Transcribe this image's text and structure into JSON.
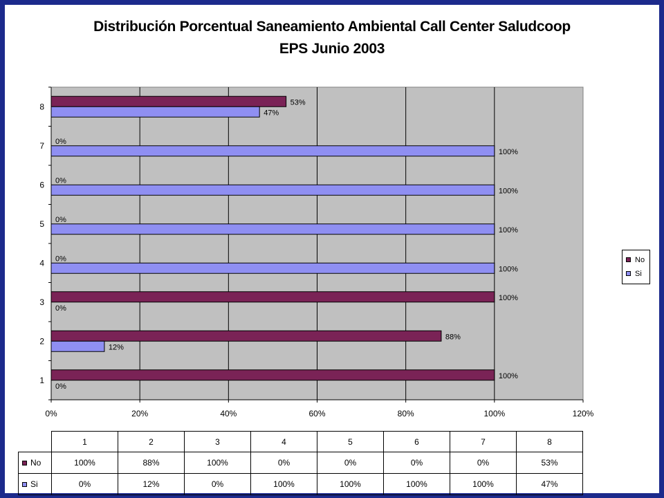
{
  "slide": {
    "background": "#1c2a8c",
    "panel_color": "#ffffff"
  },
  "chart_data": {
    "type": "bar",
    "orientation": "horizontal",
    "title": "Distribución Porcentual Saneamiento Ambiental Call Center Saludcoop",
    "subtitle": "EPS Junio 2003",
    "categories": [
      "1",
      "2",
      "3",
      "4",
      "5",
      "6",
      "7",
      "8"
    ],
    "series": [
      {
        "name": "No",
        "color": "#7a2356",
        "values": [
          100,
          88,
          100,
          0,
          0,
          0,
          0,
          53
        ],
        "labels": [
          "100%",
          "88%",
          "100%",
          "0%",
          "0%",
          "0%",
          "0%",
          "53%"
        ]
      },
      {
        "name": "Si",
        "color": "#8f8ff2",
        "values": [
          0,
          12,
          0,
          100,
          100,
          100,
          100,
          47
        ],
        "labels": [
          "0%",
          "12%",
          "0%",
          "100%",
          "100%",
          "100%",
          "100%",
          "47%"
        ]
      }
    ],
    "xlim": [
      0,
      120
    ],
    "xticks": [
      "0%",
      "20%",
      "40%",
      "60%",
      "80%",
      "100%",
      "120%"
    ],
    "grid": true,
    "plot_background": "#c0c0c0",
    "legend": {
      "position": "right",
      "entries": [
        "No",
        "Si"
      ]
    },
    "data_table": true
  }
}
